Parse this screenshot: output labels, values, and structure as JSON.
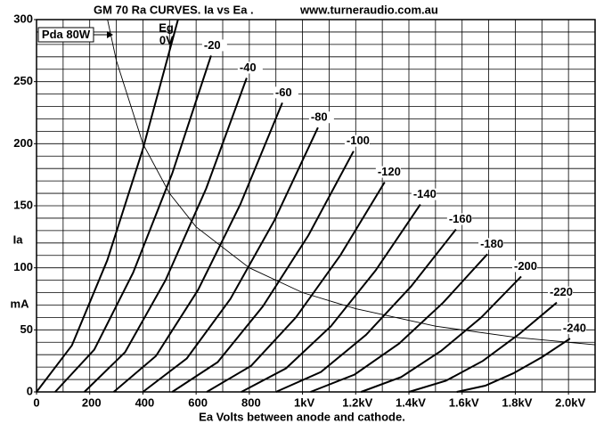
{
  "chart_data": {
    "type": "line",
    "title": "GM 70 Ra CURVES. Ia vs Ea .",
    "subtitle": "www.turneraudio.com.au",
    "x_label": "Ea Volts between anode and cathode.",
    "y_label": "Ia",
    "y_unit": "mA",
    "curve_param_label": "Eg",
    "xlim": [
      0,
      2100
    ],
    "ylim": [
      0,
      300
    ],
    "xticks": [
      0,
      200,
      400,
      600,
      800,
      {
        "value": 1000,
        "label": "1kV"
      },
      {
        "value": 1200,
        "label": "1.2kV"
      },
      {
        "value": 1400,
        "label": "1.4kV"
      },
      {
        "value": 1600,
        "label": "1.6kV"
      },
      {
        "value": 1800,
        "label": "1.8kV"
      },
      {
        "value": 2000,
        "label": "2.0kV"
      }
    ],
    "yticks": [
      0,
      50,
      100,
      150,
      200,
      250,
      300
    ],
    "xgrid": [
      0,
      100,
      200,
      300,
      400,
      500,
      600,
      700,
      800,
      900,
      1000,
      1100,
      1200,
      1300,
      1400,
      1500,
      1600,
      1700,
      1800,
      1900,
      2000,
      2100
    ],
    "ygrid": [
      0,
      10,
      20,
      30,
      40,
      50,
      60,
      70,
      80,
      90,
      100,
      110,
      120,
      130,
      140,
      150,
      160,
      170,
      180,
      190,
      200,
      210,
      220,
      230,
      240,
      250,
      260,
      270,
      280,
      290,
      300
    ],
    "grid": true,
    "series": [
      {
        "name": "0V",
        "color": "#000000",
        "x": [
          0,
          133,
          266,
          399,
          532
        ],
        "values": [
          0,
          37.5,
          106,
          195,
          300
        ]
      },
      {
        "name": "-20",
        "color": "#000000",
        "x": [
          70,
          217,
          363,
          510,
          656
        ],
        "values": [
          0,
          34,
          96,
          176,
          271
        ]
      },
      {
        "name": "-40",
        "color": "#000000",
        "x": [
          180,
          333,
          485,
          638,
          790
        ],
        "values": [
          0,
          32,
          90,
          164,
          253
        ]
      },
      {
        "name": "-60",
        "color": "#000000",
        "x": [
          290,
          449,
          607,
          766,
          924
        ],
        "values": [
          0,
          29,
          82,
          151,
          233
        ]
      },
      {
        "name": "-80",
        "color": "#000000",
        "x": [
          400,
          565,
          729,
          894,
          1058
        ],
        "values": [
          0,
          27,
          75,
          138,
          213
        ]
      },
      {
        "name": "-100",
        "color": "#000000",
        "x": [
          510,
          681,
          851,
          1022,
          1192
        ],
        "values": [
          0,
          24,
          69,
          126,
          194
        ]
      },
      {
        "name": "-120",
        "color": "#000000",
        "x": [
          640,
          807,
          975,
          1142,
          1309
        ],
        "values": [
          0,
          21,
          60,
          110,
          169
        ]
      },
      {
        "name": "-140",
        "color": "#000000",
        "x": [
          770,
          938,
          1107,
          1275,
          1443
        ],
        "values": [
          0,
          19,
          53,
          98,
          151
        ]
      },
      {
        "name": "-160",
        "color": "#000000",
        "x": [
          900,
          1069,
          1239,
          1408,
          1577
        ],
        "values": [
          0,
          16,
          46,
          85,
          131
        ]
      },
      {
        "name": "-180",
        "color": "#000000",
        "x": [
          1030,
          1196,
          1363,
          1529,
          1695
        ],
        "values": [
          0,
          14,
          39,
          72,
          111
        ]
      },
      {
        "name": "-200",
        "color": "#000000",
        "x": [
          1220,
          1371,
          1521,
          1672,
          1822
        ],
        "values": [
          0,
          12,
          33,
          60,
          93
        ]
      },
      {
        "name": "-220",
        "color": "#000000",
        "x": [
          1400,
          1539,
          1678,
          1817,
          1956
        ],
        "values": [
          0,
          9,
          25,
          47,
          72
        ]
      },
      {
        "name": "-240",
        "color": "#000000",
        "x": [
          1580,
          1687,
          1793,
          1900,
          2006
        ],
        "values": [
          0,
          5,
          15,
          28,
          43
        ]
      }
    ],
    "power_curve": {
      "name": "Pda 80W",
      "color": "#000000",
      "x": [
        267,
        300,
        400,
        500,
        600,
        800,
        1000,
        1200,
        1500,
        1800,
        2100
      ],
      "values": [
        300,
        267,
        200,
        160,
        133,
        100,
        80,
        67,
        53,
        44,
        38
      ]
    }
  }
}
